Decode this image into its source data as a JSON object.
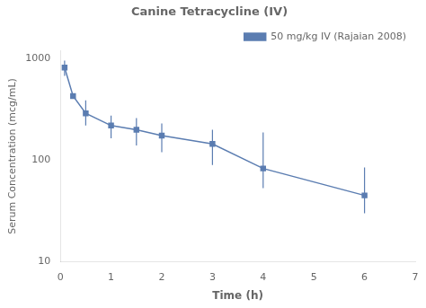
{
  "chart_data": {
    "type": "line",
    "title": "Canine Tetracycline (IV)",
    "x_label": "Time (h)",
    "y_label": "Serum Concentration (mcg/mL)",
    "x": [
      0.083,
      0.25,
      0.5,
      1.0,
      1.5,
      2.0,
      3.0,
      4.0,
      6.0
    ],
    "series": [
      {
        "name": "50 mg/kg IV (Rajaian 2008)",
        "color": "#5b7db1",
        "marker": "square",
        "line_style": "solid",
        "values": [
          820,
          430,
          290,
          220,
          200,
          175,
          145,
          83,
          45
        ],
        "yerr_upper": [
          140,
          0,
          100,
          55,
          60,
          55,
          55,
          105,
          40
        ],
        "yerr_lower": [
          140,
          0,
          70,
          55,
          60,
          55,
          55,
          30,
          15
        ]
      }
    ],
    "xlim": [
      0,
      7
    ],
    "xticks": [
      0,
      1,
      2,
      3,
      4,
      5,
      6,
      7
    ],
    "ylim": [
      10,
      1200
    ],
    "yticks": [
      10,
      100,
      1000
    ],
    "log": "y",
    "grid": false,
    "legend": "upper right"
  }
}
